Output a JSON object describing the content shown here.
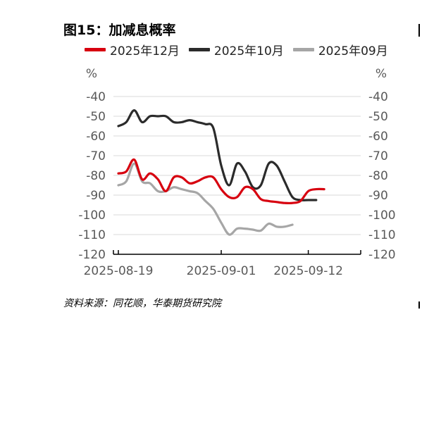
{
  "title": "图15：加减息概率",
  "source": "资料来源：同花顺，华泰期货研究院",
  "legend": [
    {
      "name": "2025年12月",
      "color": "#d7000f"
    },
    {
      "name": "2025年10月",
      "color": "#2b2b2b"
    },
    {
      "name": "2025年09月",
      "color": "#a6a6a6"
    }
  ],
  "chart_data": {
    "type": "line",
    "title": "图15：加减息概率",
    "y_unit_left": "%",
    "y_unit_right": "%",
    "ylim": [
      -120,
      -40
    ],
    "yticks": [
      -40,
      -50,
      -60,
      -70,
      -80,
      -90,
      -100,
      -110,
      -120
    ],
    "xticks": [
      "2025-08-19",
      "2025-09-01",
      "2025-09-12"
    ],
    "x": [
      "2025-08-19",
      "2025-08-20",
      "2025-08-21",
      "2025-08-22",
      "2025-08-23",
      "2025-08-24",
      "2025-08-25",
      "2025-08-26",
      "2025-08-27",
      "2025-08-28",
      "2025-08-29",
      "2025-08-30",
      "2025-08-31",
      "2025-09-01",
      "2025-09-02",
      "2025-09-03",
      "2025-09-04",
      "2025-09-05",
      "2025-09-06",
      "2025-09-07",
      "2025-09-08",
      "2025-09-09",
      "2025-09-10",
      "2025-09-11",
      "2025-09-12",
      "2025-09-13",
      "2025-09-14",
      "2025-09-15",
      "2025-09-16",
      "2025-09-17",
      "2025-09-18"
    ],
    "grid": true,
    "legend_position": "top",
    "series": [
      {
        "name": "2025年12月",
        "color": "#d7000f",
        "values": [
          -79,
          -78,
          -72,
          -82,
          -79,
          -82,
          -88,
          -81,
          -81,
          -84,
          -83,
          -81,
          -81,
          -87,
          -91,
          -91,
          -86,
          -87,
          -92,
          -93,
          -93.5,
          -94,
          -94,
          -93,
          -88,
          -87,
          -87,
          null,
          null,
          null,
          null
        ]
      },
      {
        "name": "2025年10月",
        "color": "#2b2b2b",
        "values": [
          -55,
          -53,
          -47,
          -53,
          -50,
          -50,
          -50,
          -53,
          -53,
          -52,
          -53,
          -54,
          -56,
          -75,
          -85,
          -74,
          -78,
          -86,
          -85,
          -74,
          -75,
          -83,
          -91,
          -92.5,
          -92.5,
          -92.5,
          null,
          null,
          null,
          null,
          null
        ]
      },
      {
        "name": "2025年09月",
        "color": "#a6a6a6",
        "values": [
          -85,
          -83,
          -74,
          -83,
          -84,
          -88,
          -88,
          -86,
          -87,
          -88,
          -89,
          -93,
          -97,
          -104,
          -110,
          -107,
          -107,
          -107.5,
          -108,
          -104.5,
          -106,
          -106,
          -105,
          null,
          null,
          null,
          null,
          null,
          null,
          null,
          null
        ]
      }
    ]
  }
}
